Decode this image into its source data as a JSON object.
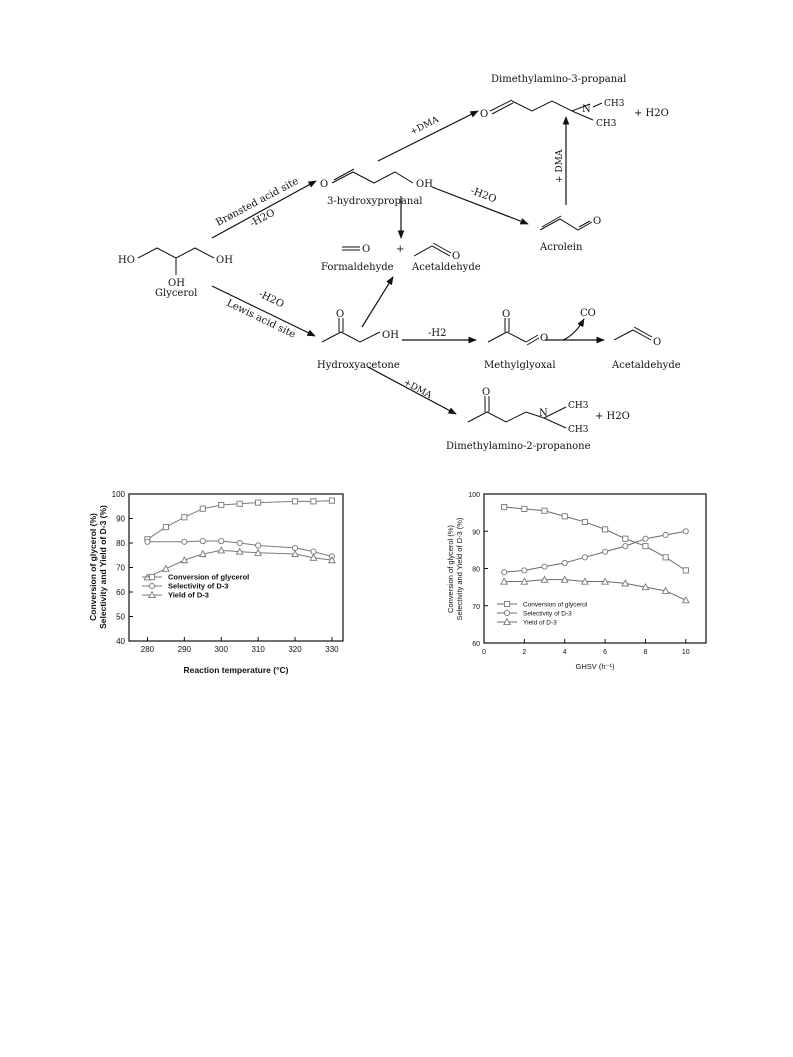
{
  "scheme": {
    "compounds": {
      "glycerol": "Glycerol",
      "hydroxypropanal": "3-hydroxypropanal",
      "formaldehyde": "Formaldehyde",
      "acetaldehyde_top": "Acetaldehyde",
      "acrolein": "Acrolein",
      "d3": "Dimethylamino-3-propanal",
      "hydroxyacetone": "Hydroxyacetone",
      "methylglyoxal": "Methylglyoxal",
      "acetaldehyde_right": "Acetaldehyde",
      "d2": "Dimethylamino-2-propanone"
    },
    "labels": {
      "bronsted": "Brønsted acid site",
      "lewis": "Lewis acid site",
      "minus_h2o_a": "-H2O",
      "minus_h2o_b": "-H2O",
      "minus_h2o_c": "-H2O",
      "minus_h2": "-H2",
      "plus_dma_a": "+DMA",
      "plus_dma_b": "+ DMA",
      "plus_dma_c": "+DMA",
      "co": "CO",
      "plus_sign": "+",
      "plus_h2o_a": "+  H2O",
      "plus_h2o_b": "+  H2O",
      "oh": "OH",
      "ho": "HO",
      "o": "O",
      "n": "N",
      "ch3": "CH3"
    }
  },
  "chart_data": [
    {
      "type": "line",
      "xlabel": "Reaction temperature (°C)",
      "ylabel_1": "Conversion of glycerol (%)",
      "ylabel_2": "Selectivity and Yield of D-3 (%)",
      "xlim": [
        275,
        333
      ],
      "ylim": [
        40,
        100
      ],
      "xticks": [
        280,
        290,
        300,
        310,
        320,
        330
      ],
      "yticks": [
        40,
        50,
        60,
        70,
        80,
        90,
        100
      ],
      "legend_position": "bottom-left",
      "series": [
        {
          "name": "Conversion of glycerol",
          "marker": "square",
          "x": [
            280,
            285,
            290,
            295,
            300,
            305,
            310,
            320,
            325,
            330
          ],
          "y": [
            81.5,
            86.5,
            90.5,
            94,
            95.5,
            96,
            96.5,
            97,
            97,
            97.3
          ]
        },
        {
          "name": "Selectivity of D-3",
          "marker": "circle",
          "x": [
            280,
            290,
            295,
            300,
            305,
            310,
            320,
            325,
            330
          ],
          "y": [
            80.5,
            80.5,
            80.8,
            80.8,
            80,
            79,
            78,
            76.5,
            74.5
          ]
        },
        {
          "name": "Yield of D-3",
          "marker": "triangle",
          "x": [
            280,
            285,
            290,
            295,
            300,
            305,
            310,
            320,
            325,
            330
          ],
          "y": [
            66,
            69.5,
            73,
            75.5,
            77,
            76.5,
            76,
            75.5,
            74,
            73
          ]
        }
      ]
    },
    {
      "type": "line",
      "xlabel": "GHSV  (h⁻¹)",
      "ylabel_1": "Conversion of glycerol  (%)",
      "ylabel_2": "Selectivity and Yield of D-3  (%)",
      "xlim": [
        0,
        11
      ],
      "ylim": [
        60,
        100
      ],
      "xticks": [
        0,
        2,
        4,
        6,
        8,
        10
      ],
      "yticks": [
        60,
        70,
        80,
        90,
        100
      ],
      "legend_position": "bottom-left",
      "series": [
        {
          "name": "Conversion of glycerol",
          "marker": "square",
          "x": [
            1,
            2,
            3,
            4,
            5,
            6,
            7,
            8,
            9,
            10
          ],
          "y": [
            96.5,
            96,
            95.5,
            94,
            92.5,
            90.5,
            88,
            86,
            83,
            79.5
          ]
        },
        {
          "name": "Selectivity of D-3",
          "marker": "circle",
          "x": [
            1,
            2,
            3,
            4,
            5,
            6,
            7,
            8,
            9,
            10
          ],
          "y": [
            79,
            79.5,
            80.5,
            81.5,
            83,
            84.5,
            86,
            88,
            89,
            90
          ]
        },
        {
          "name": "Yield of D-3",
          "marker": "triangle",
          "x": [
            1,
            2,
            3,
            4,
            5,
            6,
            7,
            8,
            9,
            10
          ],
          "y": [
            76.5,
            76.5,
            77,
            77,
            76.5,
            76.5,
            76,
            75,
            74,
            71.5
          ]
        }
      ]
    }
  ]
}
